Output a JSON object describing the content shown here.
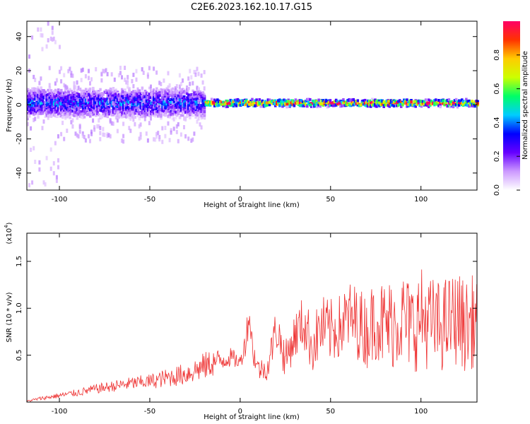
{
  "title": "C2E6.2023.162.10.17.G15",
  "chart_data": [
    {
      "type": "heatmap",
      "xlabel": "Height of straight line (km)",
      "ylabel": "Frequency (Hz)",
      "xlim": [
        -118,
        131
      ],
      "ylim": [
        -50,
        49
      ],
      "xticks": [
        -100,
        -50,
        0,
        50,
        100
      ],
      "yticks": [
        -40,
        -20,
        0,
        20,
        40
      ],
      "colorbar": {
        "label": "Normalized spectral amplitude",
        "range": [
          0.0,
          1.0
        ],
        "ticks": [
          0.0,
          0.2,
          0.4,
          0.6,
          0.8
        ],
        "colors": [
          "#ffffff",
          "#cc99ff",
          "#6600ff",
          "#0000ff",
          "#00ccff",
          "#00ff66",
          "#ccff00",
          "#ffcc00",
          "#ff3300",
          "#ff0066"
        ]
      },
      "ridge": {
        "center_hz": 1,
        "segments": [
          {
            "x_range": [
              -118,
              -20
            ],
            "half_width_hz": 8,
            "peak_amplitude": 0.35
          },
          {
            "x_range": [
              -20,
              131
            ],
            "half_width_hz": 2,
            "peak_amplitude": 0.9
          }
        ]
      },
      "notes_visible": "Broad scattered signal at low heights, narrowing to a strong line near 0 Hz above about -15 km"
    },
    {
      "type": "line",
      "xlabel": "Height of straight line (km)",
      "ylabel": "SNR (10 * v/v)",
      "yunit": "(x10",
      "yunit_exp": "4",
      "yunit_close": ")",
      "xlim": [
        -118,
        131
      ],
      "ylim": [
        0,
        1.8
      ],
      "xticks": [
        -100,
        -50,
        0,
        50,
        100
      ],
      "yticks": [
        0.5,
        1.0,
        1.5
      ],
      "ytick_labels": [
        "0.5",
        "1.0",
        "1.5"
      ],
      "series": [
        {
          "color": "#ee3333",
          "x": [
            -118,
            -110,
            -100,
            -90,
            -80,
            -70,
            -60,
            -50,
            -40,
            -30,
            -20,
            -15,
            -10,
            -5,
            0,
            3,
            5,
            7,
            10,
            15,
            20,
            25,
            30,
            35,
            40,
            45,
            50,
            55,
            60,
            65,
            70,
            75,
            80,
            85,
            90,
            95,
            100,
            105,
            110,
            115,
            120,
            125,
            131
          ],
          "y": [
            0.01,
            0.04,
            0.07,
            0.1,
            0.14,
            0.17,
            0.2,
            0.22,
            0.26,
            0.3,
            0.38,
            0.42,
            0.45,
            0.48,
            0.42,
            0.65,
            0.95,
            0.55,
            0.35,
            0.35,
            0.8,
            0.45,
            0.7,
            0.85,
            0.6,
            0.8,
            0.75,
            0.8,
            0.9,
            0.85,
            0.75,
            0.9,
            0.8,
            0.85,
            0.9,
            0.8,
            0.9,
            0.85,
            0.8,
            0.85,
            0.9,
            0.8,
            0.9
          ],
          "variability": [
            0.01,
            0.02,
            0.03,
            0.04,
            0.05,
            0.06,
            0.07,
            0.08,
            0.1,
            0.12,
            0.15,
            0.15,
            0.12,
            0.1,
            0.08,
            0.15,
            0.2,
            0.15,
            0.12,
            0.12,
            0.25,
            0.2,
            0.25,
            0.3,
            0.3,
            0.35,
            0.35,
            0.35,
            0.4,
            0.4,
            0.4,
            0.45,
            0.5,
            0.5,
            0.5,
            0.5,
            0.55,
            0.5,
            0.5,
            0.5,
            0.5,
            0.5,
            0.5
          ]
        }
      ]
    }
  ]
}
